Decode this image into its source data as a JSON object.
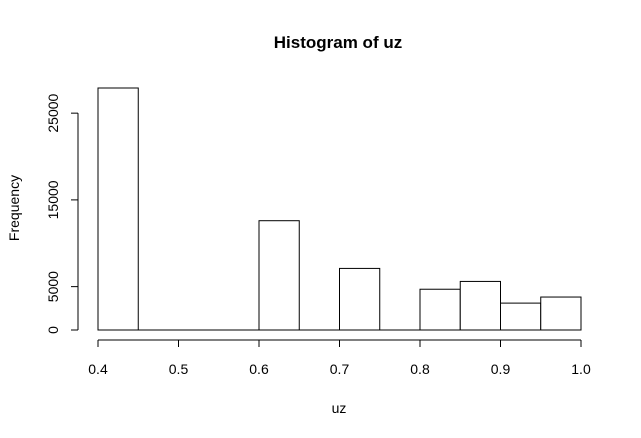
{
  "chart_data": {
    "type": "bar",
    "title": "Histogram of uz",
    "xlabel": "uz",
    "ylabel": "Frequency",
    "bin_edges": [
      0.4,
      0.45,
      0.5,
      0.55,
      0.6,
      0.65,
      0.7,
      0.75,
      0.8,
      0.85,
      0.9,
      0.95,
      1.0
    ],
    "values": [
      27900,
      0,
      0,
      0,
      12600,
      0,
      7100,
      0,
      4700,
      5600,
      3100,
      3800
    ],
    "xlim": [
      0.4,
      1.0
    ],
    "ylim": [
      0,
      27900
    ],
    "x_ticks": [
      0.4,
      0.5,
      0.6,
      0.7,
      0.8,
      0.9,
      1.0
    ],
    "x_tick_labels": [
      "0.4",
      "0.5",
      "0.6",
      "0.7",
      "0.8",
      "0.9",
      "1.0"
    ],
    "y_ticks": [
      0,
      5000,
      15000,
      25000
    ],
    "y_tick_labels": [
      "0",
      "5000",
      "15000",
      "25000"
    ],
    "grid": false,
    "legend": "none"
  }
}
